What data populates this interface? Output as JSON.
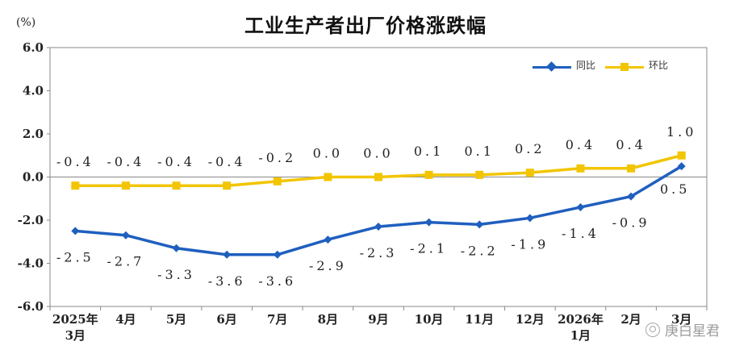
{
  "chart_data": {
    "type": "line",
    "title": "工业生产者出厂价格涨跌幅",
    "unit": "(%)",
    "x_labels": [
      [
        "2025年",
        "3月"
      ],
      [
        "4月"
      ],
      [
        "5月"
      ],
      [
        "6月"
      ],
      [
        "7月"
      ],
      [
        "8月"
      ],
      [
        "9月"
      ],
      [
        "10月"
      ],
      [
        "11月"
      ],
      [
        "12月"
      ],
      [
        "2026年",
        "1月"
      ],
      [
        "2月"
      ],
      [
        "3月"
      ]
    ],
    "ylim": [
      -6.0,
      6.0
    ],
    "y_ticks": [
      "6.0",
      "4.0",
      "2.0",
      "0.0",
      "-2.0",
      "-4.0",
      "-6.0"
    ],
    "legend_position": "top-right",
    "grid": false,
    "series": [
      {
        "name": "同比",
        "color": "#1f5fbf",
        "marker": "diamond",
        "values": [
          -2.5,
          -2.7,
          -3.3,
          -3.6,
          -3.6,
          -2.9,
          -2.3,
          -2.1,
          -2.2,
          -1.9,
          -1.4,
          -0.9,
          0.5
        ],
        "labels": [
          "-2.5",
          "-2.7",
          "-3.3",
          "-3.6",
          "-3.6",
          "-2.9",
          "-2.3",
          "-2.1",
          "-2.2",
          "-1.9",
          "-1.4",
          "-0.9",
          "0.5"
        ]
      },
      {
        "name": "环比",
        "color": "#f2c500",
        "marker": "square",
        "values": [
          -0.4,
          -0.4,
          -0.4,
          -0.4,
          -0.2,
          0.0,
          0.0,
          0.1,
          0.1,
          0.2,
          0.4,
          0.4,
          1.0
        ],
        "labels": [
          "-0.4",
          "-0.4",
          "-0.4",
          "-0.4",
          "-0.2",
          "0.0",
          "0.0",
          "0.1",
          "0.1",
          "0.2",
          "0.4",
          "0.4",
          "1.0"
        ]
      }
    ]
  },
  "watermark": "庚白星君"
}
